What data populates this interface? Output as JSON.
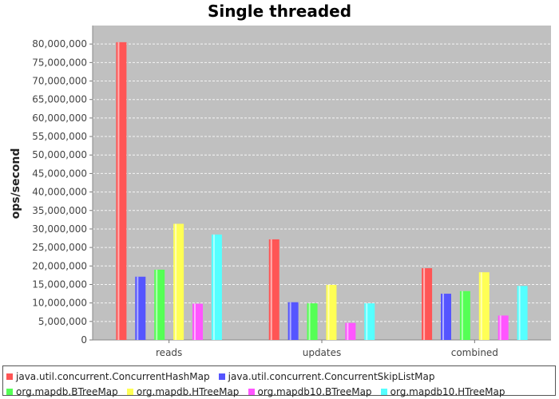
{
  "chart_data": {
    "type": "bar",
    "title": "Single threaded",
    "xlabel": "",
    "ylabel": "ops/second",
    "categories": [
      "reads",
      "updates",
      "combined"
    ],
    "ylim": [
      0,
      85000000
    ],
    "yticks": [
      "0",
      "5,000,000",
      "10,000,000",
      "15,000,000",
      "20,000,000",
      "25,000,000",
      "30,000,000",
      "35,000,000",
      "40,000,000",
      "45,000,000",
      "50,000,000",
      "55,000,000",
      "60,000,000",
      "65,000,000",
      "70,000,000",
      "75,000,000",
      "80,000,000"
    ],
    "ytick_values": [
      0,
      5000000,
      10000000,
      15000000,
      20000000,
      25000000,
      30000000,
      35000000,
      40000000,
      45000000,
      50000000,
      55000000,
      60000000,
      65000000,
      70000000,
      75000000,
      80000000
    ],
    "grid": true,
    "legend_position": "bottom",
    "plot_background": "#c0c0c0",
    "series": [
      {
        "name": "java.util.concurrent.ConcurrentHashMap",
        "color": "#ff5555",
        "values": [
          80500000,
          27200000,
          19400000
        ]
      },
      {
        "name": "java.util.concurrent.ConcurrentSkipListMap",
        "color": "#5555ff",
        "values": [
          17100000,
          10200000,
          12500000
        ]
      },
      {
        "name": "org.mapdb.BTreeMap",
        "color": "#55ff55",
        "values": [
          19000000,
          9900000,
          13200000
        ]
      },
      {
        "name": "org.mapdb.HTreeMap",
        "color": "#ffff55",
        "values": [
          31400000,
          14900000,
          18300000
        ]
      },
      {
        "name": "org.mapdb10.BTreeMap",
        "color": "#ff55ff",
        "values": [
          9800000,
          4600000,
          6600000
        ]
      },
      {
        "name": "org.mapdb10.HTreeMap",
        "color": "#55ffff",
        "values": [
          28500000,
          9900000,
          14600000
        ]
      }
    ]
  }
}
